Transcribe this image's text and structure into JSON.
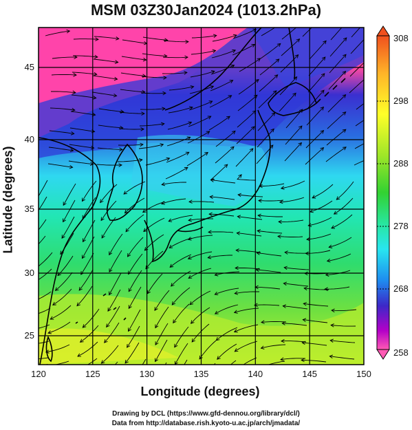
{
  "title": "MSM 03Z30Jan2024 (1013.2hPa)",
  "xlabel": "Longitude (degrees)",
  "ylabel": "Latitude  (degrees)",
  "credits": [
    "Drawing by DCL (https://www.gfd-dennou.org/library/dcl/)",
    "Data from http://database.rish.kyoto-u.ac.jp/arch/jmadata/"
  ],
  "map": {
    "lon_range": [
      120,
      150
    ],
    "lat_range": [
      22.4,
      47.6
    ],
    "lon_ticks": [
      "120",
      "125",
      "130",
      "135",
      "140",
      "145",
      "150"
    ],
    "lat_ticks": [
      "25",
      "30",
      "35",
      "40",
      "45"
    ],
    "grid": true,
    "field": "temperature",
    "vectors": "wind streamlines"
  },
  "colorbar": {
    "ticks": [
      "308",
      "298",
      "288",
      "278",
      "268",
      "258"
    ],
    "min": 258,
    "max": 308,
    "colors": [
      "#ff5ab4",
      "#b400c8",
      "#3c28c8",
      "#1e8cf0",
      "#28e6f0",
      "#28e696",
      "#3cd23c",
      "#a0e628",
      "#ffff28",
      "#ffb428",
      "#f0501e"
    ]
  }
}
